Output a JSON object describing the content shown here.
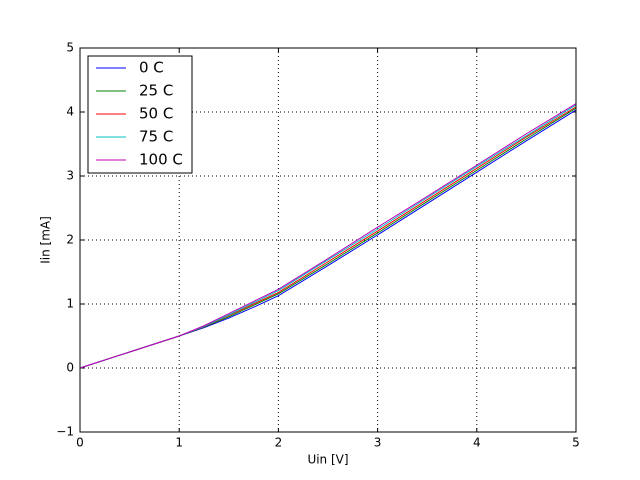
{
  "chart_data": {
    "type": "line",
    "xlabel": "Uin [V]",
    "ylabel": "Iin [mA]",
    "x": [
      0,
      0.5,
      1,
      1.25,
      1.5,
      1.75,
      2,
      2.5,
      3,
      3.5,
      4,
      4.5,
      5
    ],
    "series": [
      {
        "name": "0 C",
        "color": "#0000ff",
        "values": [
          0,
          0.25,
          0.5,
          0.63,
          0.78,
          0.95,
          1.13,
          1.6,
          2.08,
          2.57,
          3.06,
          3.55,
          4.03
        ]
      },
      {
        "name": "25 C",
        "color": "#008000",
        "values": [
          0,
          0.25,
          0.5,
          0.64,
          0.8,
          0.98,
          1.16,
          1.63,
          2.11,
          2.6,
          3.09,
          3.58,
          4.06
        ]
      },
      {
        "name": "50 C",
        "color": "#ff0000",
        "values": [
          0,
          0.25,
          0.5,
          0.645,
          0.82,
          1.0,
          1.18,
          1.66,
          2.14,
          2.63,
          3.12,
          3.61,
          4.08
        ]
      },
      {
        "name": "75 C",
        "color": "#00bfbf",
        "values": [
          0,
          0.25,
          0.5,
          0.65,
          0.83,
          1.02,
          1.21,
          1.69,
          2.17,
          2.66,
          3.15,
          3.63,
          4.11
        ]
      },
      {
        "name": "100 C",
        "color": "#bf00bf",
        "values": [
          0,
          0.25,
          0.5,
          0.66,
          0.85,
          1.04,
          1.23,
          1.71,
          2.2,
          2.68,
          3.17,
          3.66,
          4.13
        ]
      }
    ],
    "xlim": [
      0,
      5
    ],
    "xticks": [
      0,
      1,
      2,
      3,
      4,
      5
    ],
    "ylim": [
      -1,
      5
    ],
    "yticks": [
      {
        "value": -1,
        "label": "−1"
      },
      0,
      1,
      2,
      3,
      4,
      5
    ],
    "grid": true,
    "legend": "upper left"
  }
}
